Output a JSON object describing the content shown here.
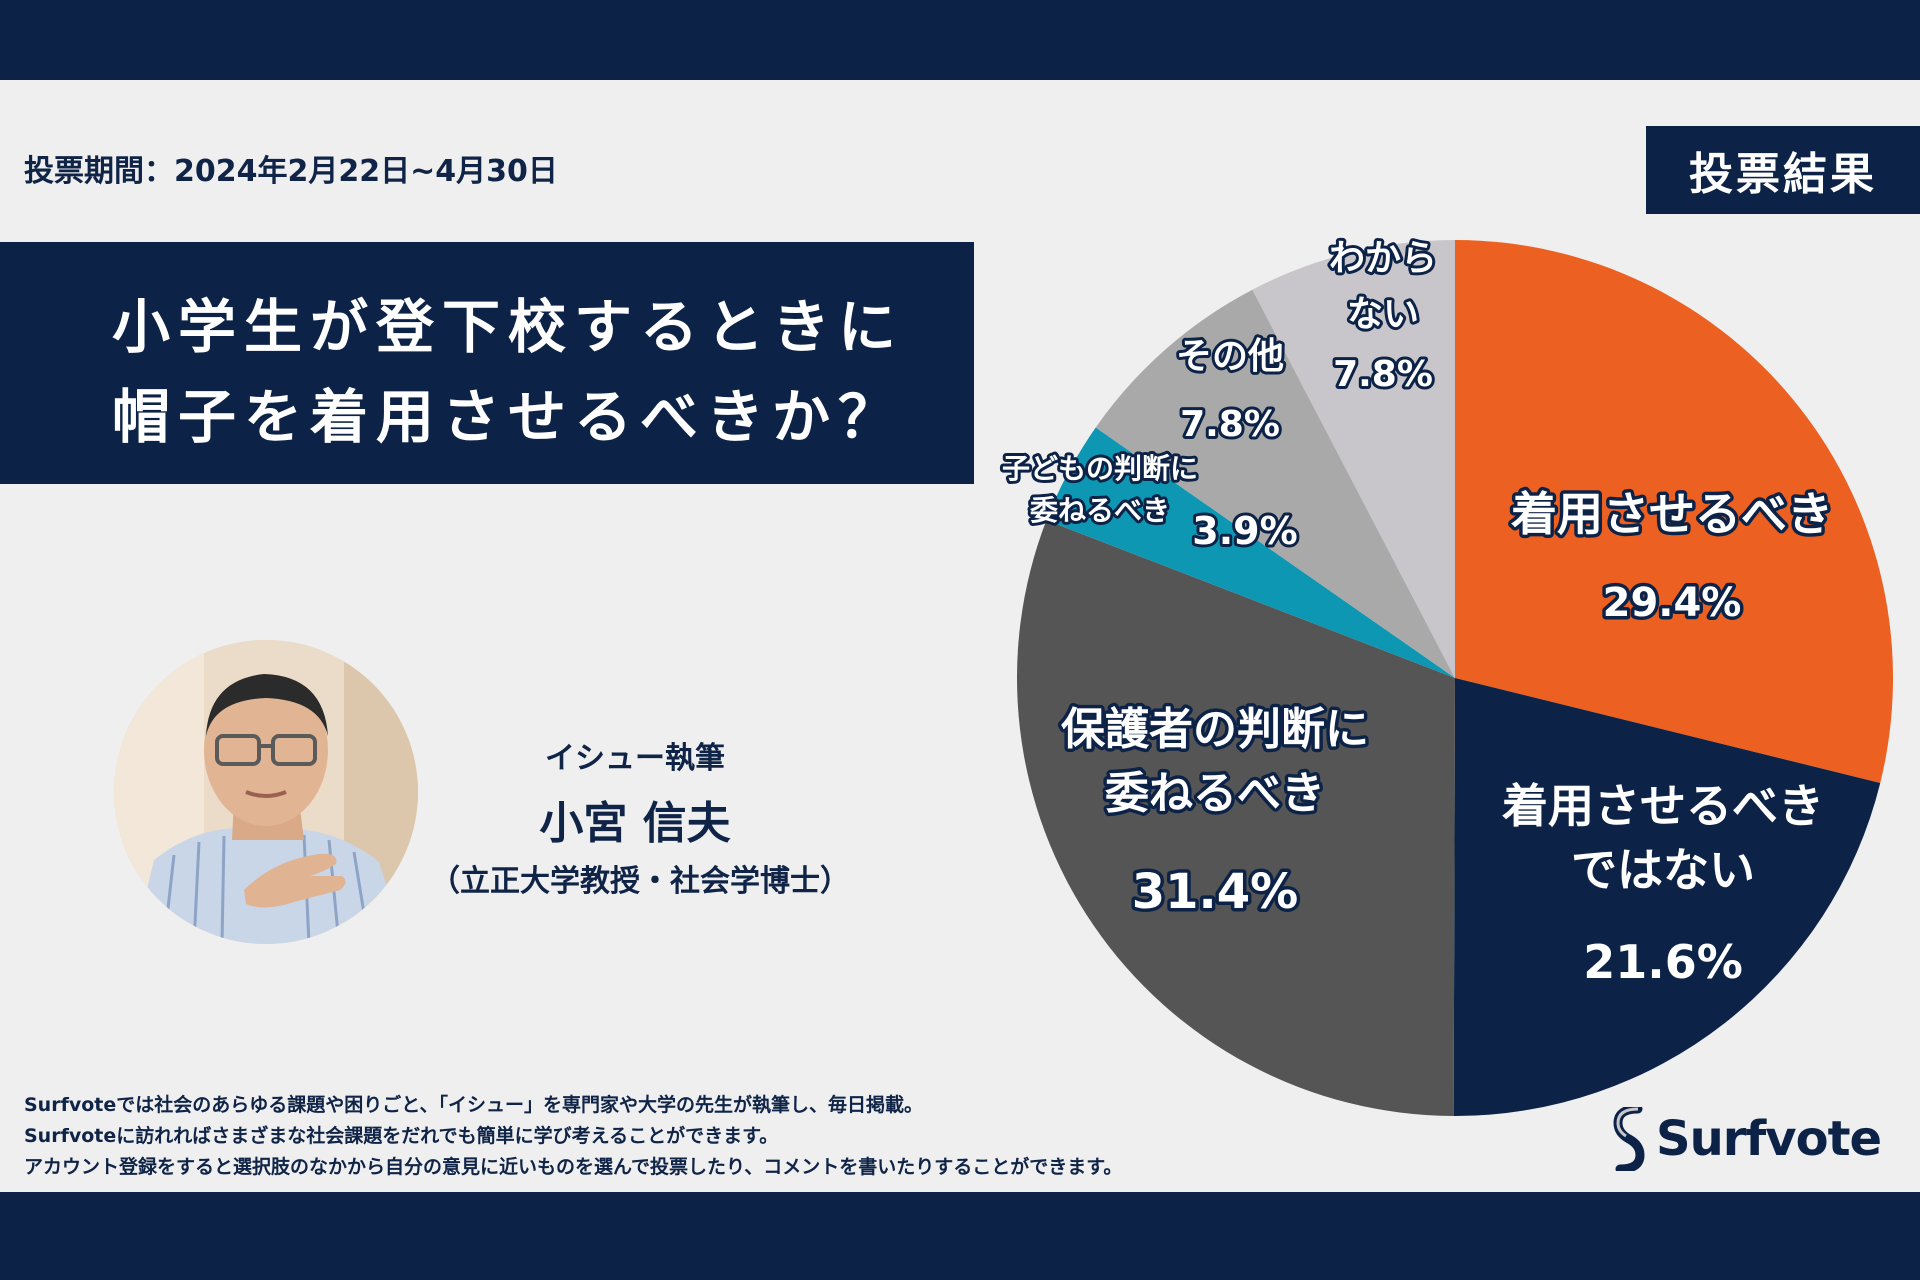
{
  "header": {
    "period": "投票期間：2024年2月22日~4月30日",
    "result_badge": "投票結果"
  },
  "title": {
    "line1": "小学生が登下校するときに",
    "line2": "帽子を着用させるべきか？"
  },
  "author": {
    "role": "イシュー執筆",
    "name": "小宮 信夫",
    "affiliation": "（立正大学教授・社会学博士）"
  },
  "footer": {
    "lines": [
      "Surfvoteでは社会のあらゆる課題や困りごと、「イシュー」を専門家や大学の先生が執筆し、毎日掲載。",
      "Surfvoteに訪れればさまざまな社会課題をだれでも簡単に学び考えることができます。",
      "アカウント登録をすると選択肢のなかから自分の意見に近いものを選んで投票したり、コメントを書いたりすることができます。"
    ]
  },
  "logo": {
    "name": "Surfvote"
  },
  "colors": {
    "navy": "#0c2347",
    "orange": "#ec6121",
    "dark_gray": "#555555",
    "teal": "#0e97b3",
    "gray": "#a9a9a9",
    "light_gray": "#c8c6ca"
  },
  "chart_data": {
    "type": "pie",
    "title": "投票結果",
    "start": "12 o'clock, clockwise",
    "slices": [
      {
        "label_lines": [
          "着用させるべき"
        ],
        "value": 29.4,
        "value_text": "29.4%",
        "color": "#ec6121"
      },
      {
        "label_lines": [
          "着用させるべき",
          "ではない"
        ],
        "value": 21.6,
        "value_text": "21.6%",
        "color": "#0c2347"
      },
      {
        "label_lines": [
          "保護者の判断に",
          "委ねるべき"
        ],
        "value": 31.4,
        "value_text": "31.4%",
        "color": "#555555"
      },
      {
        "label_lines": [
          "子どもの判断に",
          "委ねるべき"
        ],
        "value": 3.9,
        "value_text": "3.9%",
        "color": "#0e97b3"
      },
      {
        "label_lines": [
          "その他"
        ],
        "value": 7.8,
        "value_text": "7.8%",
        "color": "#a9a9a9"
      },
      {
        "label_lines": [
          "わから",
          "ない"
        ],
        "value": 7.8,
        "value_text": "7.8%",
        "color": "#c8c6ca"
      }
    ]
  }
}
